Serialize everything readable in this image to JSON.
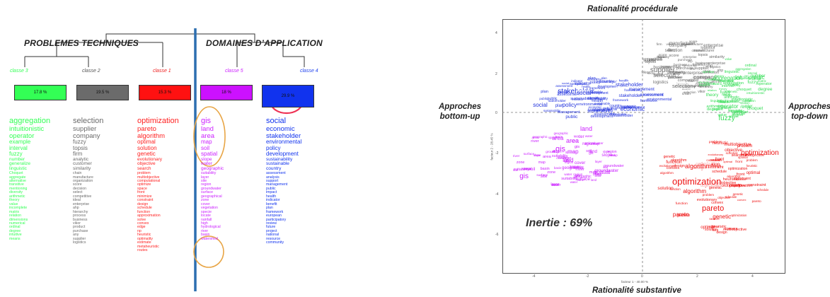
{
  "left": {
    "header_left": "PROBLEMES TECHNIQUES",
    "header_right": "DOMAINES D’APPLICATION",
    "classes": [
      {
        "label": "classe 3",
        "pct": "17.8 %",
        "color": "#33ff55",
        "words": [
          "aggregation",
          "intuitionistic",
          "operator",
          "example",
          "interval",
          "fuzzy",
          "number",
          "generalize",
          "linguistic",
          "Choquet",
          "aggregate",
          "alternative",
          "transitive",
          "mentioning",
          "diversity",
          "arithmetic",
          "theory",
          "value",
          "incomplete",
          "matrix",
          "relation",
          "dimensions",
          "numerical",
          "ordinal",
          "degree",
          "intuitive",
          "means"
        ]
      },
      {
        "label": "classe 2",
        "pct": "19.5 %",
        "color": "#6b6b6b",
        "words": [
          "selection",
          "supplier",
          "company",
          "fuzzy",
          "topsis",
          "firm",
          "analytic",
          "customer",
          "similarity",
          "chain",
          "manufacture",
          "organization",
          "score",
          "decision",
          "select",
          "competitive",
          "ideal",
          "enterprise",
          "ahp",
          "hierarchy",
          "process",
          "business",
          "vikor",
          "product",
          "purchase",
          "any",
          "supplier",
          "logistics"
        ]
      },
      {
        "label": "classe 1",
        "pct": "15.3 %",
        "color": "#ff2222",
        "words": [
          "optimization",
          "pareto",
          "algorithm",
          "optimal",
          "solution",
          "genetic",
          "evolutionary",
          "objective",
          "search",
          "problem",
          "multiobjective",
          "computational",
          "optimize",
          "space",
          "front",
          "minimize",
          "constraint",
          "design",
          "schedule",
          "function",
          "approximation",
          "solve",
          "convex",
          "edge",
          "np",
          "heuristic",
          "optimality",
          "estimate",
          "metaheuristic",
          "routes"
        ]
      },
      {
        "label": "classe 5",
        "pct": "18 %",
        "color": "#cc22ff",
        "words": [
          "gis",
          "land",
          "area",
          "map",
          "soil",
          "spatial",
          "slope",
          "water",
          "geographic",
          "suitability",
          "layer",
          "site",
          "region",
          "groundwater",
          "surface",
          "geographical",
          "zone",
          "cover",
          "vegetation",
          "specie",
          "locate",
          "rainfall",
          "high",
          "hydrological",
          "river",
          "basin",
          "watershed"
        ]
      },
      {
        "label": "classe 4",
        "pct": "29.9 %",
        "color": "#1133ee",
        "words": [
          "social",
          "economic",
          "stakeholder",
          "environmental",
          "policy",
          "development",
          "sustainability",
          "sustainable",
          "country",
          "assessment",
          "analysis",
          "support",
          "management",
          "public",
          "impact",
          "health",
          "indicator",
          "benefit",
          "plan",
          "framework",
          "european",
          "participatory",
          "review",
          "future",
          "project",
          "national",
          "resource",
          "community"
        ]
      }
    ]
  },
  "right": {
    "title_top": "Rationalité procédurale",
    "title_bottom": "Rationalité substantive",
    "label_left_1": "Approches",
    "label_left_2": "bottom-up",
    "label_right_1": "Approches",
    "label_right_2": "top-down",
    "inertia": "Inertie : 69%",
    "x_axis_label": "facteur 1 - 40.00 %",
    "y_axis_label": "facteur 2 - 28.45 %",
    "x_ticks": [
      "-4",
      "-2",
      "0",
      "2",
      "4"
    ],
    "y_ticks": [
      "4",
      "2",
      "0",
      "-2",
      "-4",
      "-6"
    ],
    "clusters": [
      {
        "color": "#6b6b6b",
        "words": [
          "supplier",
          "company",
          "selection",
          "firm",
          "topsis",
          "manufacturer",
          "competitive",
          "customer",
          "enterprise",
          "logistics",
          "business",
          "purchase",
          "vikor",
          "similarity",
          "hierarchy",
          "ahp",
          "chain",
          "score"
        ]
      },
      {
        "color": "#33dd55",
        "words": [
          "fuzzy",
          "aggregation",
          "intuitionistic",
          "operator",
          "interval",
          "number",
          "linguistic",
          "choquet",
          "theory",
          "relation",
          "arithmetic",
          "value",
          "matrix",
          "degree",
          "ordinal"
        ]
      },
      {
        "color": "#2233dd",
        "words": [
          "stakeholder",
          "social",
          "economic",
          "policy",
          "environmental",
          "sustainable",
          "development",
          "sustainability",
          "health",
          "public",
          "framework",
          "indicator",
          "assessment",
          "country",
          "management",
          "plan"
        ]
      },
      {
        "color": "#cc22ff",
        "words": [
          "gis",
          "area",
          "land",
          "spatial",
          "map",
          "soil",
          "geographic",
          "water",
          "site",
          "layer",
          "slope",
          "zone",
          "surface",
          "groundwater",
          "suitability",
          "river",
          "basin",
          "region",
          "cover"
        ]
      },
      {
        "color": "#ee1111",
        "words": [
          "optimization",
          "pareto",
          "algorithm",
          "genetic",
          "optimal",
          "evolutionary",
          "solution",
          "objective",
          "problem",
          "search",
          "multiobjective",
          "heuristic",
          "constraint",
          "design",
          "front",
          "convex",
          "function",
          "schedule"
        ]
      }
    ]
  }
}
